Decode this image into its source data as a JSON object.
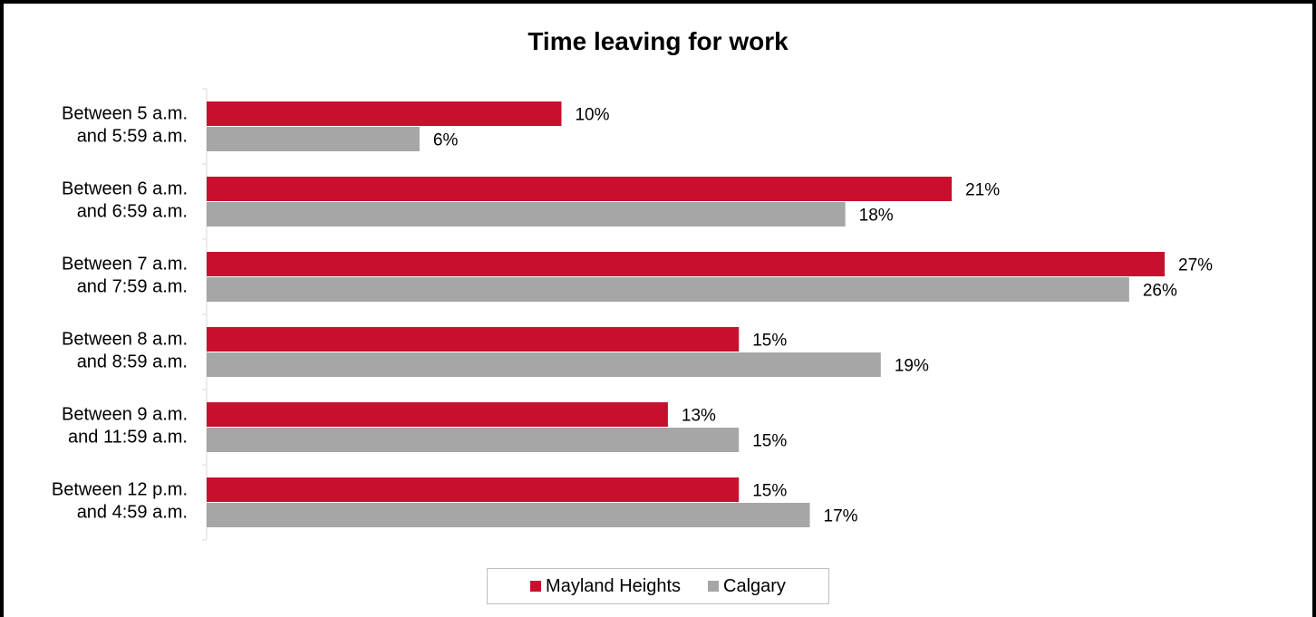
{
  "chart_data": {
    "type": "bar",
    "orientation": "horizontal",
    "title": "Time leaving for work",
    "categories": [
      [
        "Between 5 a.m.",
        "and 5:59 a.m."
      ],
      [
        "Between 6 a.m.",
        "and 6:59 a.m."
      ],
      [
        "Between 7 a.m.",
        "and 7:59 a.m."
      ],
      [
        "Between 8 a.m.",
        "and 8:59 a.m."
      ],
      [
        "Between 9 a.m.",
        "and 11:59 a.m."
      ],
      [
        "Between 12 p.m.",
        "and 4:59 a.m."
      ]
    ],
    "series": [
      {
        "name": "Mayland Heights",
        "color": "#c8102e",
        "values": [
          10,
          21,
          27,
          15,
          13,
          15
        ],
        "labels": [
          "10%",
          "21%",
          "27%",
          "15%",
          "13%",
          "15%"
        ]
      },
      {
        "name": "Calgary",
        "color": "#a6a6a6",
        "values": [
          6,
          18,
          26,
          19,
          15,
          17
        ],
        "labels": [
          "6%",
          "18%",
          "26%",
          "19%",
          "15%",
          "17%"
        ]
      }
    ],
    "unit": "%",
    "legend_position": "bottom",
    "grid": false
  }
}
